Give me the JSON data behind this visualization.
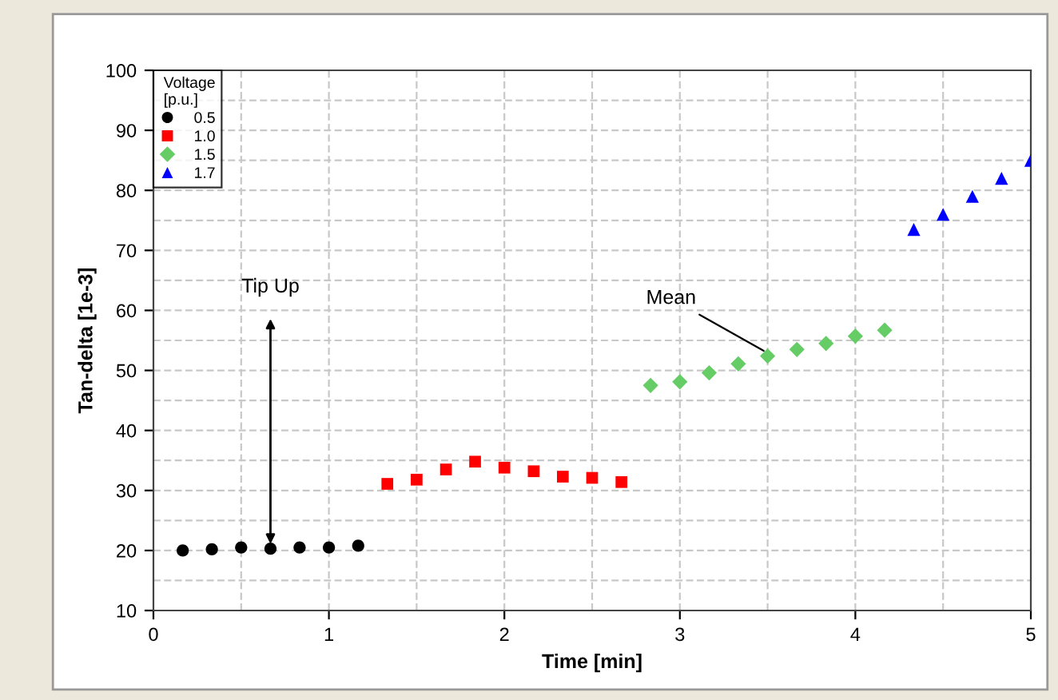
{
  "chart_data": {
    "type": "scatter",
    "xlabel": "Time [min]",
    "ylabel": "Tan-delta [1e-3]",
    "legend_title": "Voltage\n[p.u.]",
    "xlim": [
      0,
      5
    ],
    "xticks": [
      0,
      1,
      2,
      3,
      4,
      5
    ],
    "ylim": [
      10,
      100
    ],
    "yticks": [
      10,
      20,
      30,
      40,
      50,
      60,
      70,
      80,
      90,
      100
    ],
    "grid": true,
    "legend": "top left",
    "series": [
      {
        "name": "0.5",
        "color": "#000000",
        "marker": "circle",
        "x": [
          0.167,
          0.333,
          0.5,
          0.667,
          0.833,
          1.0,
          1.167
        ],
        "values": [
          20.0,
          20.2,
          20.5,
          20.3,
          20.5,
          20.5,
          20.8
        ]
      },
      {
        "name": "1.0",
        "color": "#ff0000",
        "marker": "square",
        "x": [
          1.333,
          1.5,
          1.667,
          1.833,
          2.0,
          2.167,
          2.333,
          2.5,
          2.667
        ],
        "values": [
          31.1,
          31.8,
          33.5,
          34.8,
          33.8,
          33.2,
          32.3,
          32.1,
          31.4
        ]
      },
      {
        "name": "1.5",
        "color": "#66cc66",
        "marker": "diamond",
        "x": [
          2.833,
          3.0,
          3.167,
          3.333,
          3.5,
          3.667,
          3.833,
          4.0,
          4.167
        ],
        "values": [
          47.5,
          48.1,
          49.6,
          51.1,
          52.4,
          53.5,
          54.5,
          55.7,
          56.7
        ]
      },
      {
        "name": "1.7",
        "color": "#0000ff",
        "marker": "triangle",
        "x": [
          4.333,
          4.5,
          4.667,
          4.833,
          5.0
        ],
        "values": [
          73.5,
          76.0,
          79.0,
          82.0,
          85.0
        ]
      }
    ],
    "annotations": [
      {
        "text": "Tip Up",
        "x": 0.667,
        "y": 20.3
      },
      {
        "text": "Mean",
        "x": 3.5,
        "y": 52.4
      }
    ]
  }
}
